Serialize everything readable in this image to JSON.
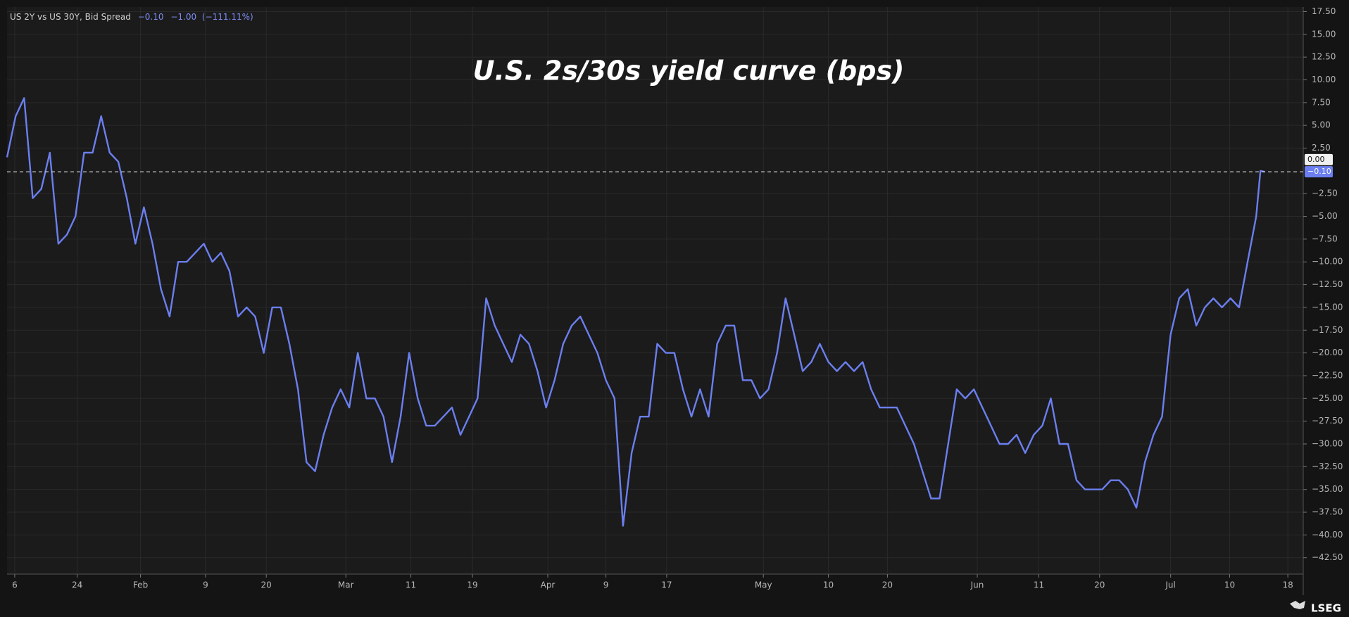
{
  "chart_data": {
    "type": "line",
    "title": "U.S. 2s/30s yield curve (bps)",
    "legend_text": {
      "name": "US 2Y vs US 30Y, Bid Spread",
      "last": "−0.10",
      "change": "−1.00",
      "change_pct": "(−111.11%)"
    },
    "x": [
      0,
      2,
      4,
      6,
      8,
      10,
      12,
      14,
      16,
      18,
      20,
      22,
      24,
      26,
      28,
      30,
      32,
      34,
      36,
      38,
      40,
      42,
      44,
      46,
      48,
      50,
      52,
      54,
      56,
      58,
      60,
      62,
      64,
      66,
      68,
      70,
      72,
      74,
      76,
      78,
      80,
      82,
      84,
      86,
      88,
      90,
      92,
      94,
      96,
      98,
      100,
      102,
      104,
      106,
      108,
      110,
      112,
      114,
      116,
      118,
      120,
      122,
      124,
      126,
      128,
      130,
      132,
      134,
      136,
      138,
      140,
      142,
      144,
      146,
      148,
      150,
      152,
      154,
      156,
      158,
      160,
      162,
      164,
      166,
      168,
      170,
      172,
      174,
      176,
      178,
      180,
      182,
      184,
      186,
      188,
      190,
      192,
      194,
      196,
      198,
      200,
      202,
      204,
      206,
      208,
      210,
      212,
      214,
      216,
      218,
      220,
      222,
      224,
      226,
      228,
      230,
      232,
      234,
      236,
      238,
      240,
      242,
      244,
      246,
      248,
      250,
      252,
      254,
      256,
      258,
      260,
      262,
      264,
      266,
      268,
      270,
      272,
      274,
      276,
      278,
      280,
      282,
      284,
      286,
      288,
      290,
      292,
      293,
      294
    ],
    "series": [
      {
        "name": "US 2Y vs US 30Y, Bid Spread",
        "color": "#6b7ff0",
        "values": [
          1.5,
          6,
          8,
          -3,
          -2,
          2,
          -8,
          -7,
          -5,
          2,
          2,
          6,
          2,
          1,
          -3,
          -8,
          -4,
          -8,
          -13,
          -16,
          -10,
          -10,
          -9,
          -8,
          -10,
          -9,
          -11,
          -16,
          -15,
          -16,
          -20,
          -15,
          -15,
          -19,
          -24,
          -32,
          -33,
          -29,
          -26,
          -24,
          -26,
          -20,
          -25,
          -25,
          -27,
          -32,
          -27,
          -20,
          -25,
          -28,
          -28,
          -27,
          -26,
          -29,
          -27,
          -25,
          -14,
          -17,
          -19,
          -21,
          -18,
          -19,
          -22,
          -26,
          -23,
          -19,
          -17,
          -16,
          -18,
          -20,
          -23,
          -25,
          -39,
          -31,
          -27,
          -27,
          -19,
          -20,
          -20,
          -24,
          -27,
          -24,
          -27,
          -19,
          -17,
          -17,
          -23,
          -23,
          -25,
          -24,
          -20,
          -14,
          -18,
          -22,
          -21,
          -19,
          -21,
          -22,
          -21,
          -22,
          -21,
          -24,
          -26,
          -26,
          -26,
          -28,
          -30,
          -33,
          -36,
          -36,
          -30,
          -24,
          -25,
          -24,
          -26,
          -28,
          -30,
          -30,
          -29,
          -31,
          -29,
          -28,
          -25,
          -30,
          -30,
          -34,
          -35,
          -35,
          -35,
          -34,
          -34,
          -35,
          -37,
          -32,
          -29,
          -27,
          -18,
          -14,
          -13,
          -17,
          -15,
          -14,
          -15,
          -14,
          -15,
          -10,
          -5,
          0,
          -0.1
        ]
      }
    ],
    "xlim": [
      0,
      303
    ],
    "xticks": [
      {
        "value": 1.8,
        "label": "6"
      },
      {
        "value": 16.4,
        "label": "24"
      },
      {
        "value": 31.2,
        "label": "Feb"
      },
      {
        "value": 46.4,
        "label": "9"
      },
      {
        "value": 60.6,
        "label": "20"
      },
      {
        "value": 79.2,
        "label": "Mar"
      },
      {
        "value": 94.4,
        "label": "11"
      },
      {
        "value": 108.8,
        "label": "19"
      },
      {
        "value": 126.4,
        "label": "Apr"
      },
      {
        "value": 140,
        "label": "9"
      },
      {
        "value": 154.2,
        "label": "17"
      },
      {
        "value": 176.8,
        "label": "May"
      },
      {
        "value": 192,
        "label": "10"
      },
      {
        "value": 205.8,
        "label": "20"
      },
      {
        "value": 226.8,
        "label": "Jun"
      },
      {
        "value": 241.2,
        "label": "11"
      },
      {
        "value": 255.4,
        "label": "20"
      },
      {
        "value": 272,
        "label": "Jul"
      },
      {
        "value": 285.8,
        "label": "10"
      },
      {
        "value": 299.4,
        "label": "18"
      }
    ],
    "ylim": [
      -44.3,
      18
    ],
    "yticks": [
      {
        "value": 17.5,
        "label": "17.50"
      },
      {
        "value": 15,
        "label": "15.00"
      },
      {
        "value": 12.5,
        "label": "12.50"
      },
      {
        "value": 10,
        "label": "10.00"
      },
      {
        "value": 7.5,
        "label": "7.50"
      },
      {
        "value": 5,
        "label": "5.00"
      },
      {
        "value": 2.5,
        "label": "2.50"
      },
      {
        "value": -2.5,
        "label": "−2.50"
      },
      {
        "value": -5,
        "label": "−5.00"
      },
      {
        "value": -7.5,
        "label": "−7.50"
      },
      {
        "value": -10,
        "label": "−10.00"
      },
      {
        "value": -12.5,
        "label": "−12.50"
      },
      {
        "value": -15,
        "label": "−15.00"
      },
      {
        "value": -17.5,
        "label": "−17.50"
      },
      {
        "value": -20,
        "label": "−20.00"
      },
      {
        "value": -22.5,
        "label": "−22.50"
      },
      {
        "value": -25,
        "label": "−25.00"
      },
      {
        "value": -27.5,
        "label": "−27.50"
      },
      {
        "value": -30,
        "label": "−30.00"
      },
      {
        "value": -32.5,
        "label": "−32.50"
      },
      {
        "value": -35,
        "label": "−35.00"
      },
      {
        "value": -37.5,
        "label": "−37.50"
      },
      {
        "value": -40,
        "label": "−40.00"
      },
      {
        "value": -42.5,
        "label": "−42.50"
      }
    ],
    "marker_labels": [
      {
        "value": 0,
        "label": "0.00"
      },
      {
        "value": -0.1,
        "label": "−0.10"
      }
    ],
    "grid": true
  },
  "brand": "LSEG"
}
